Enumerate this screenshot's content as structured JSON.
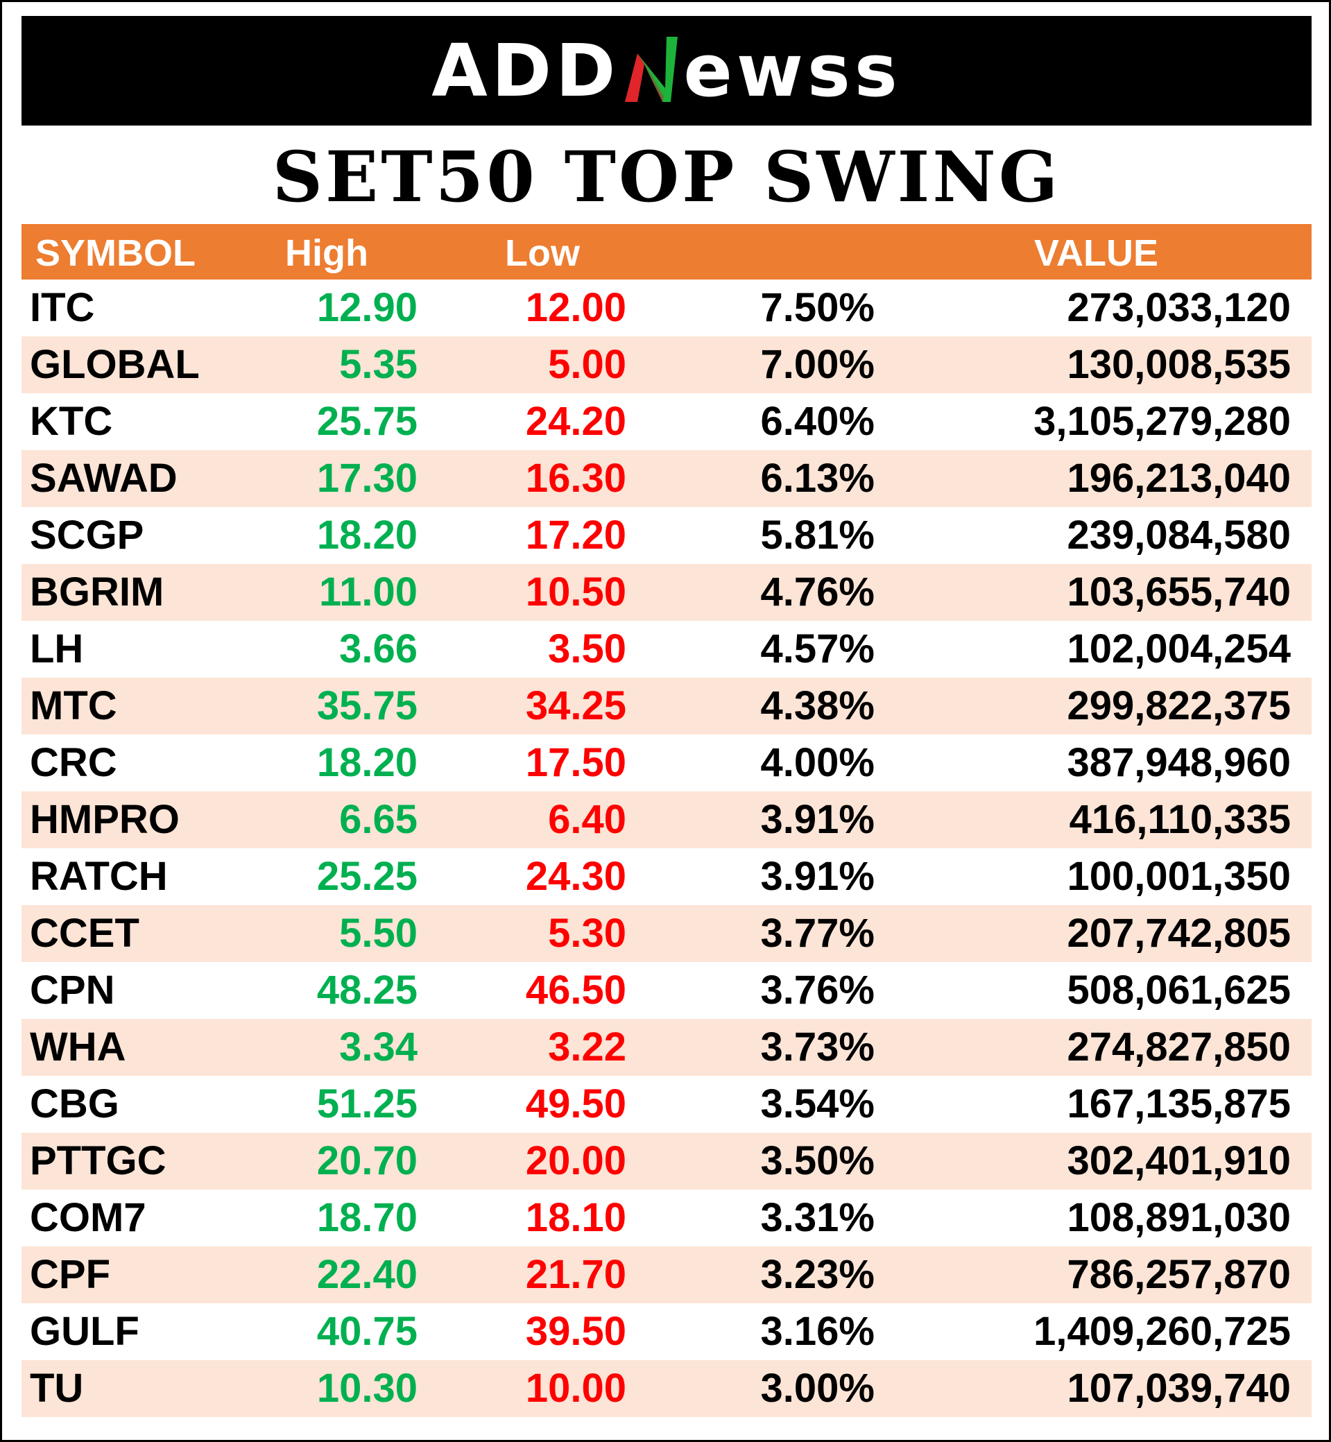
{
  "brand": {
    "logo_left": "ADD",
    "logo_right": "ewss",
    "logo_letter": "N",
    "accent_green": "#1db33a",
    "accent_red": "#e0262a"
  },
  "title": "SET50 TOP SWING",
  "colors": {
    "header_bg": "#ed7d31",
    "stripe_bg": "#fce4d6",
    "high_text": "#00b050",
    "low_text": "#ff0000"
  },
  "table": {
    "headers": {
      "symbol": "SYMBOL",
      "high": "High",
      "low": "Low",
      "pct": "",
      "value": "VALUE"
    },
    "rows": [
      {
        "symbol": "ITC",
        "high": "12.90",
        "low": "12.00",
        "pct": "7.50%",
        "value": "273,033,120"
      },
      {
        "symbol": "GLOBAL",
        "high": "5.35",
        "low": "5.00",
        "pct": "7.00%",
        "value": "130,008,535"
      },
      {
        "symbol": "KTC",
        "high": "25.75",
        "low": "24.20",
        "pct": "6.40%",
        "value": "3,105,279,280"
      },
      {
        "symbol": "SAWAD",
        "high": "17.30",
        "low": "16.30",
        "pct": "6.13%",
        "value": "196,213,040"
      },
      {
        "symbol": "SCGP",
        "high": "18.20",
        "low": "17.20",
        "pct": "5.81%",
        "value": "239,084,580"
      },
      {
        "symbol": "BGRIM",
        "high": "11.00",
        "low": "10.50",
        "pct": "4.76%",
        "value": "103,655,740"
      },
      {
        "symbol": "LH",
        "high": "3.66",
        "low": "3.50",
        "pct": "4.57%",
        "value": "102,004,254"
      },
      {
        "symbol": "MTC",
        "high": "35.75",
        "low": "34.25",
        "pct": "4.38%",
        "value": "299,822,375"
      },
      {
        "symbol": "CRC",
        "high": "18.20",
        "low": "17.50",
        "pct": "4.00%",
        "value": "387,948,960"
      },
      {
        "symbol": "HMPRO",
        "high": "6.65",
        "low": "6.40",
        "pct": "3.91%",
        "value": "416,110,335"
      },
      {
        "symbol": "RATCH",
        "high": "25.25",
        "low": "24.30",
        "pct": "3.91%",
        "value": "100,001,350"
      },
      {
        "symbol": "CCET",
        "high": "5.50",
        "low": "5.30",
        "pct": "3.77%",
        "value": "207,742,805"
      },
      {
        "symbol": "CPN",
        "high": "48.25",
        "low": "46.50",
        "pct": "3.76%",
        "value": "508,061,625"
      },
      {
        "symbol": "WHA",
        "high": "3.34",
        "low": "3.22",
        "pct": "3.73%",
        "value": "274,827,850"
      },
      {
        "symbol": "CBG",
        "high": "51.25",
        "low": "49.50",
        "pct": "3.54%",
        "value": "167,135,875"
      },
      {
        "symbol": "PTTGC",
        "high": "20.70",
        "low": "20.00",
        "pct": "3.50%",
        "value": "302,401,910"
      },
      {
        "symbol": "COM7",
        "high": "18.70",
        "low": "18.10",
        "pct": "3.31%",
        "value": "108,891,030"
      },
      {
        "symbol": "CPF",
        "high": "22.40",
        "low": "21.70",
        "pct": "3.23%",
        "value": "786,257,870"
      },
      {
        "symbol": "GULF",
        "high": "40.75",
        "low": "39.50",
        "pct": "3.16%",
        "value": "1,409,260,725"
      },
      {
        "symbol": "TU",
        "high": "10.30",
        "low": "10.00",
        "pct": "3.00%",
        "value": "107,039,740"
      }
    ]
  }
}
